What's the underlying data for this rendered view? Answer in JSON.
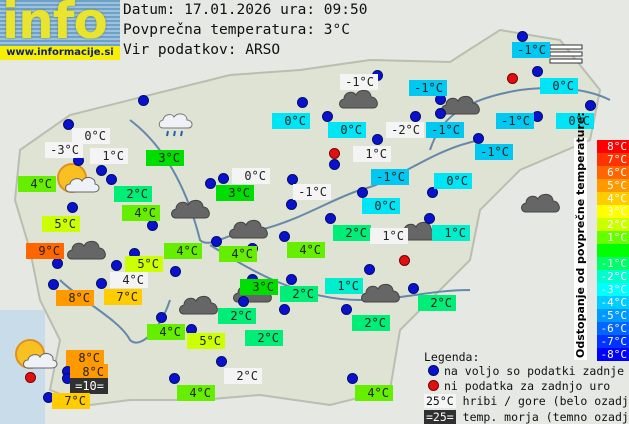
{
  "logo": {
    "text": "info",
    "url": "www.informacije.si"
  },
  "header": {
    "date_line": "Datum: 17.01.2026 ura: 09:50",
    "avg_line": "Povprečna temperatura: 3°C",
    "source_line": "Vir podatkov: ARSO"
  },
  "colors": {
    "+6": "#ff6600",
    "+5": "#ff9900",
    "+4": "#ffcc00",
    "+2": "#ccff00",
    "+1": "#66ee00",
    "0": "#00dd00",
    "-1": "#00ee77",
    "-2": "#00eecc",
    "-3": "#00e5f5",
    "-4": "#00c8f0",
    "mountain": "#f4f4f4",
    "sea": "#303030"
  },
  "stations": [
    {
      "t": "0°C",
      "k": "mountain"
    },
    {
      "t": "-3°C",
      "k": "mountain"
    },
    {
      "t": "1°C",
      "k": "mountain"
    },
    {
      "t": "3°C",
      "k": "0"
    },
    {
      "t": "4°C",
      "k": "+1"
    },
    {
      "t": "2°C",
      "k": "-1"
    },
    {
      "t": "0°C",
      "k": "mountain"
    },
    {
      "t": "3°C",
      "k": "0"
    },
    {
      "t": "-1°C",
      "k": "mountain"
    },
    {
      "t": "4°C",
      "k": "+1"
    },
    {
      "t": "5°C",
      "k": "+2"
    },
    {
      "t": "9°C",
      "k": "+6"
    },
    {
      "t": "4°C",
      "k": "+1"
    },
    {
      "t": "4°C",
      "k": "+1"
    },
    {
      "t": "4°C",
      "k": "+1"
    },
    {
      "t": "5°C",
      "k": "+2"
    },
    {
      "t": "0°C",
      "k": "-3"
    },
    {
      "t": "0°C",
      "k": "-3"
    },
    {
      "t": "-1°C",
      "k": "mountain"
    },
    {
      "t": "-1°C",
      "k": "-4"
    },
    {
      "t": "-2°C",
      "k": "mountain"
    },
    {
      "t": "-1°C",
      "k": "-4"
    },
    {
      "t": "1°C",
      "k": "mountain"
    },
    {
      "t": "-1°C",
      "k": "-4"
    },
    {
      "t": "-1°C",
      "k": "-4"
    },
    {
      "t": "0°C",
      "k": "-3"
    },
    {
      "t": "0°C",
      "k": "-3"
    },
    {
      "t": "-1°C",
      "k": "-4"
    },
    {
      "t": "0°C",
      "k": "-3"
    },
    {
      "t": "-1°C",
      "k": "-4"
    },
    {
      "t": "0°C",
      "k": "-3"
    },
    {
      "t": "2°C",
      "k": "-1"
    },
    {
      "t": "1°C",
      "k": "mountain"
    },
    {
      "t": "1°C",
      "k": "-2"
    },
    {
      "t": "3°C",
      "k": "0"
    },
    {
      "t": "2°C",
      "k": "-1"
    },
    {
      "t": "1°C",
      "k": "-2"
    },
    {
      "t": "2°C",
      "k": "-1"
    },
    {
      "t": "4°C",
      "k": "mountain"
    },
    {
      "t": "8°C",
      "k": "+5"
    },
    {
      "t": "7°C",
      "k": "+4"
    },
    {
      "t": "4°C",
      "k": "+1"
    },
    {
      "t": "5°C",
      "k": "+2"
    },
    {
      "t": "2°C",
      "k": "-1"
    },
    {
      "t": "2°C",
      "k": "-1"
    },
    {
      "t": "2°C",
      "k": "-1"
    },
    {
      "t": "8°C",
      "k": "+5"
    },
    {
      "t": "8°C",
      "k": "+5"
    },
    {
      "t": "=10=",
      "k": "sea"
    },
    {
      "t": "7°C",
      "k": "+4"
    },
    {
      "t": "4°C",
      "k": "+1"
    },
    {
      "t": "2°C",
      "k": "mountain"
    },
    {
      "t": "4°C",
      "k": "+1"
    }
  ],
  "scale": {
    "title": "Odstopanje od povprečne temperature:",
    "items": [
      {
        "t": "8°C",
        "c": "#ff0000"
      },
      {
        "t": "7°C",
        "c": "#ff3300"
      },
      {
        "t": "6°C",
        "c": "#ff6600"
      },
      {
        "t": "5°C",
        "c": "#ff9900"
      },
      {
        "t": "4°C",
        "c": "#ffcc00"
      },
      {
        "t": "3°C",
        "c": "#ffff00"
      },
      {
        "t": "2°C",
        "c": "#ccff00"
      },
      {
        "t": "1°C",
        "c": "#66ff00"
      },
      {
        "t": "",
        "c": "#00ff00"
      },
      {
        "t": "-1°C",
        "c": "#00ff66"
      },
      {
        "t": "-2°C",
        "c": "#00ffcc"
      },
      {
        "t": "-3°C",
        "c": "#00ffff"
      },
      {
        "t": "-4°C",
        "c": "#00ccff"
      },
      {
        "t": "-5°C",
        "c": "#0099ff"
      },
      {
        "t": "-6°C",
        "c": "#0066ff"
      },
      {
        "t": "-7°C",
        "c": "#0033ff"
      },
      {
        "t": "-8°C",
        "c": "#0000ff"
      }
    ]
  },
  "legend": {
    "title": "Legenda:",
    "blue": "na voljo so podatki zadnje ure",
    "red": "ni podatka za zadnjo uro",
    "mountain_sample": "25°C",
    "mountain": "hribi / gore (belo ozadje)",
    "sea_sample": "=25=",
    "sea": "temp. morja (temno ozadje)"
  }
}
